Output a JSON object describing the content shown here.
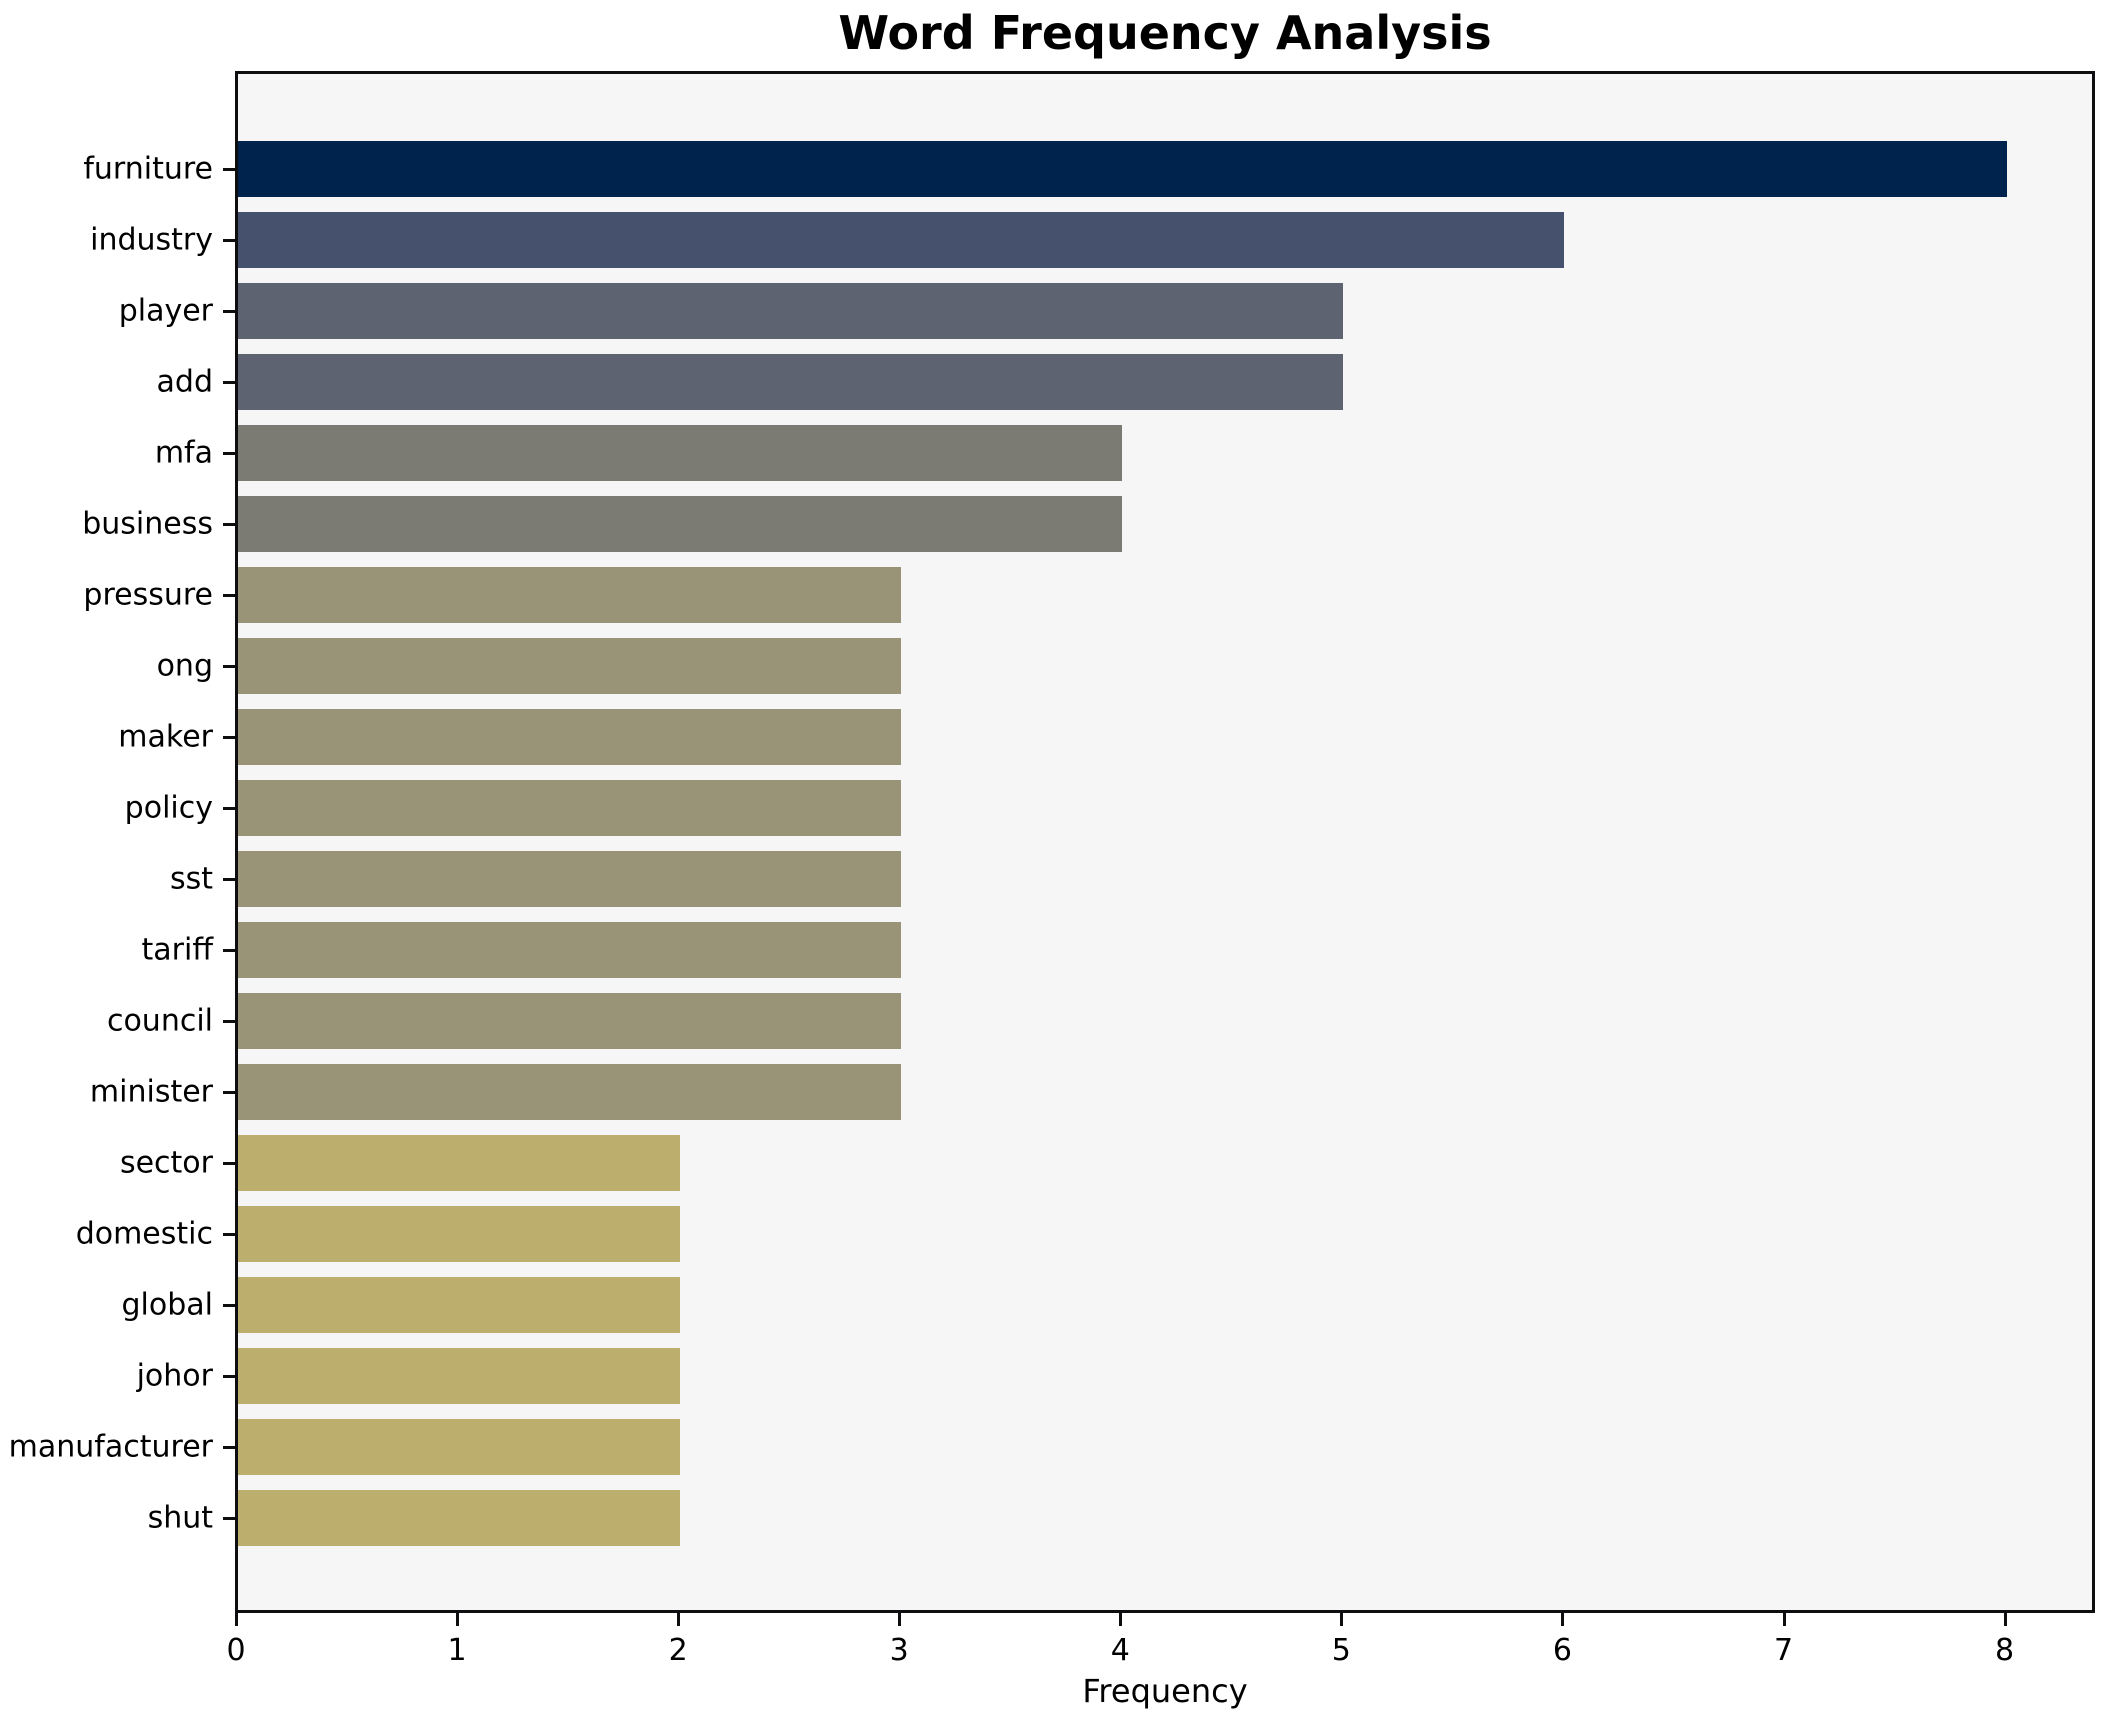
{
  "chart_data": {
    "type": "bar",
    "orientation": "horizontal",
    "title": "Word Frequency Analysis",
    "xlabel": "Frequency",
    "ylabel": "",
    "categories": [
      "furniture",
      "industry",
      "player",
      "add",
      "mfa",
      "business",
      "pressure",
      "ong",
      "maker",
      "policy",
      "sst",
      "tariff",
      "council",
      "minister",
      "sector",
      "domestic",
      "global",
      "johor",
      "manufacturer",
      "shut"
    ],
    "values": [
      8,
      6,
      5,
      5,
      4,
      4,
      3,
      3,
      3,
      3,
      3,
      3,
      3,
      3,
      2,
      2,
      2,
      2,
      2,
      2
    ],
    "bar_colors": [
      "#00234e",
      "#45516d",
      "#5d6370",
      "#5d6370",
      "#7b7a73",
      "#7b7a73",
      "#999377",
      "#999377",
      "#999377",
      "#999377",
      "#999377",
      "#999377",
      "#999377",
      "#999377",
      "#bcae6c",
      "#bcae6c",
      "#bcae6c",
      "#bcae6c",
      "#bcae6c",
      "#bcae6c"
    ],
    "xlim": [
      0,
      8.4
    ],
    "xticks": [
      0,
      1,
      2,
      3,
      4,
      5,
      6,
      7,
      8
    ],
    "grid": false,
    "legend": null,
    "plot_background": "#f6f6f7",
    "figure_background": "#ffffff",
    "spine_color": "#0e0e10",
    "text_color": "#000000"
  }
}
